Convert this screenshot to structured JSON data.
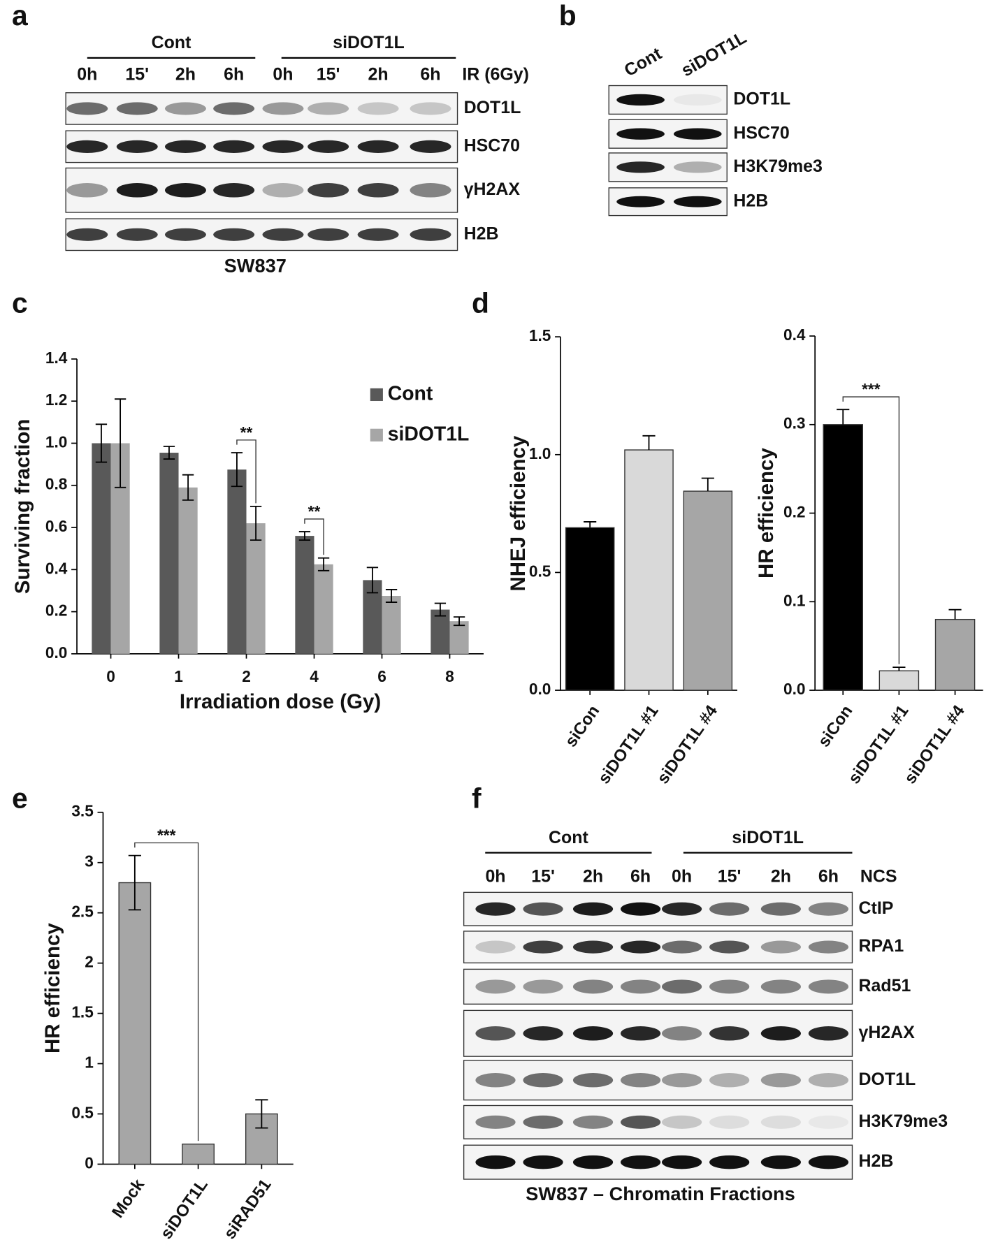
{
  "panels": {
    "a": {
      "label": "a",
      "groups": [
        "Cont",
        "siDOT1L"
      ],
      "lanes": [
        "0h",
        "15'",
        "2h",
        "6h",
        "0h",
        "15'",
        "2h",
        "6h"
      ],
      "treatment": "IR (6Gy)",
      "rows": [
        "DOT1L",
        "HSC70",
        "γH2AX",
        "H2B"
      ],
      "caption": "SW837"
    },
    "b": {
      "label": "b",
      "lanes": [
        "Cont",
        "siDOT1L"
      ],
      "rows": [
        "DOT1L",
        "HSC70",
        "H3K79me3",
        "H2B"
      ]
    },
    "f": {
      "label": "f",
      "groups": [
        "Cont",
        "siDOT1L"
      ],
      "lanes": [
        "0h",
        "15'",
        "2h",
        "6h",
        "0h",
        "15'",
        "2h",
        "6h"
      ],
      "treatment": "NCS",
      "rows": [
        "CtIP",
        "RPA1",
        "Rad51",
        "γH2AX",
        "DOT1L",
        "H3K79me3",
        "H2B"
      ],
      "caption": "SW837 – Chromatin Fractions"
    }
  },
  "chart_data": [
    {
      "type": "bar",
      "panel_label": "c",
      "xlabel": "Irradiation dose (Gy)",
      "ylabel": "Surviving fraction",
      "categories": [
        "0",
        "1",
        "2",
        "4",
        "6",
        "8"
      ],
      "series": [
        {
          "name": "Cont",
          "color": "#595959",
          "values": [
            1.0,
            0.955,
            0.875,
            0.56,
            0.35,
            0.21
          ],
          "errors": [
            0.09,
            0.03,
            0.08,
            0.02,
            0.06,
            0.03
          ]
        },
        {
          "name": "siDOT1L",
          "color": "#a6a6a6",
          "values": [
            1.0,
            0.79,
            0.62,
            0.425,
            0.275,
            0.155
          ],
          "errors": [
            0.21,
            0.06,
            0.08,
            0.03,
            0.03,
            0.02
          ]
        }
      ],
      "ylim": [
        0,
        1.4
      ],
      "yticks": [
        {
          "value": 0,
          "label": "0.0"
        },
        0.2,
        0.4,
        0.6,
        0.8,
        {
          "value": 1,
          "label": "1.0"
        },
        1.2,
        1.4
      ],
      "annotations": [
        "**",
        "**"
      ],
      "legend": "upper right"
    },
    {
      "type": "bar",
      "panel_label": "d",
      "ylabel": "NHEJ efficiency",
      "categories": [
        "siCon",
        "siDOT1L #1",
        "siDOT1L #4"
      ],
      "values": [
        0.69,
        1.02,
        0.845
      ],
      "errors": [
        0.025,
        0.06,
        0.055
      ],
      "colors": [
        "#000000",
        "#d9d9d9",
        "#a6a6a6"
      ],
      "ylim": [
        0,
        1.5
      ],
      "yticks": [
        {
          "value": 0,
          "label": "0.0"
        },
        0.5,
        {
          "value": 1,
          "label": "1.0"
        },
        1.5
      ]
    },
    {
      "type": "bar",
      "ylabel": "HR efficiency",
      "categories": [
        "siCon",
        "siDOT1L #1",
        "siDOT1L #4"
      ],
      "values": [
        0.3,
        0.022,
        0.08
      ],
      "errors": [
        0.017,
        0.004,
        0.011
      ],
      "colors": [
        "#000000",
        "#d9d9d9",
        "#a6a6a6"
      ],
      "ylim": [
        0,
        0.4
      ],
      "yticks": [
        {
          "value": 0,
          "label": "0.0"
        },
        0.1,
        0.2,
        0.3,
        0.4
      ],
      "annotations": [
        "***"
      ]
    },
    {
      "type": "bar",
      "panel_label": "e",
      "ylabel": "HR efficiency",
      "categories": [
        "Mock",
        "siDOT1L",
        "siRAD51"
      ],
      "values": [
        2.8,
        0.2,
        0.5
      ],
      "errors": [
        0.27,
        null,
        0.14
      ],
      "color": "#a6a6a6",
      "ylim": [
        0,
        3.5
      ],
      "yticks": [
        0,
        0.5,
        1,
        1.5,
        2,
        2.5,
        3,
        3.5
      ],
      "annotations": [
        "***"
      ]
    }
  ]
}
